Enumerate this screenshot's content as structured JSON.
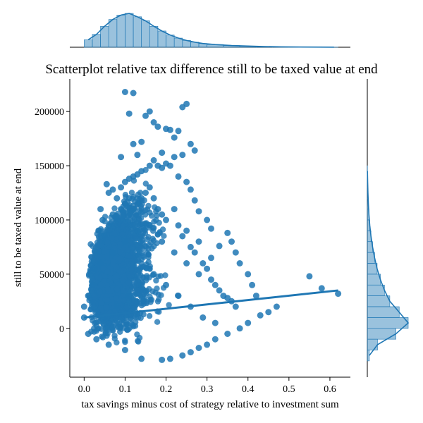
{
  "chart_data": {
    "type": "scatter",
    "title": "Scatterplot relative tax difference still to be taxed value at end",
    "xlabel": "tax savings minus cost of strategy relative to investment sum",
    "ylabel": "still to be taxed value at end",
    "xlim": [
      -0.035,
      0.65
    ],
    "ylim": [
      -45000,
      230000
    ],
    "x_ticks": [
      0.0,
      0.1,
      0.2,
      0.3,
      0.4,
      0.5,
      0.6
    ],
    "x_tick_labels": [
      "0.0",
      "0.1",
      "0.2",
      "0.3",
      "0.4",
      "0.5",
      "0.6"
    ],
    "y_ticks": [
      0,
      50000,
      100000,
      150000,
      200000
    ],
    "y_tick_labels": [
      "0",
      "50000",
      "100000",
      "150000",
      "200000"
    ],
    "grid": false,
    "color": "#1f77b4",
    "regression_line": {
      "x": [
        0.0,
        0.62
      ],
      "y": [
        10000,
        35000
      ]
    },
    "points": [
      [
        0.1,
        218000
      ],
      [
        0.12,
        217000
      ],
      [
        0.25,
        207000
      ],
      [
        0.24,
        204000
      ],
      [
        0.11,
        198000
      ],
      [
        0.15,
        196000
      ],
      [
        0.16,
        200000
      ],
      [
        0.17,
        190000
      ],
      [
        0.18,
        186000
      ],
      [
        0.2,
        184000
      ],
      [
        0.21,
        183000
      ],
      [
        0.23,
        182000
      ],
      [
        0.22,
        176000
      ],
      [
        0.26,
        170000
      ],
      [
        0.27,
        164000
      ],
      [
        0.12,
        170000
      ],
      [
        0.14,
        172000
      ],
      [
        0.09,
        158000
      ],
      [
        0.13,
        160000
      ],
      [
        0.19,
        162000
      ],
      [
        0.22,
        158000
      ],
      [
        0.24,
        160000
      ],
      [
        0.055,
        133000
      ],
      [
        0.06,
        125000
      ],
      [
        0.07,
        128000
      ],
      [
        0.08,
        120000
      ],
      [
        0.09,
        130000
      ],
      [
        0.1,
        135000
      ],
      [
        0.11,
        138000
      ],
      [
        0.12,
        140000
      ],
      [
        0.13,
        142000
      ],
      [
        0.14,
        145000
      ],
      [
        0.16,
        150000
      ],
      [
        0.17,
        155000
      ],
      [
        0.18,
        150000
      ],
      [
        0.19,
        148000
      ],
      [
        0.2,
        152000
      ],
      [
        0.21,
        150000
      ],
      [
        0.23,
        140000
      ],
      [
        0.25,
        135000
      ],
      [
        0.26,
        128000
      ],
      [
        0.27,
        118000
      ],
      [
        0.28,
        108000
      ],
      [
        0.3,
        100000
      ],
      [
        0.31,
        92000
      ],
      [
        0.33,
        76000
      ],
      [
        0.35,
        88000
      ],
      [
        0.36,
        80000
      ],
      [
        0.37,
        70000
      ],
      [
        0.38,
        60000
      ],
      [
        0.4,
        50000
      ],
      [
        0.41,
        40000
      ],
      [
        0.42,
        30000
      ],
      [
        0.55,
        48000
      ],
      [
        0.58,
        37000
      ],
      [
        0.62,
        32000
      ],
      [
        0.47,
        20000
      ],
      [
        0.45,
        15000
      ],
      [
        0.43,
        12000
      ],
      [
        0.4,
        5000
      ],
      [
        0.38,
        0
      ],
      [
        0.35,
        -5000
      ],
      [
        0.32,
        -10000
      ],
      [
        0.3,
        -15000
      ],
      [
        0.28,
        -18000
      ],
      [
        0.26,
        -22000
      ],
      [
        0.24,
        -25000
      ],
      [
        0.21,
        -28000
      ],
      [
        0.19,
        -29000
      ],
      [
        0.14,
        -28000
      ],
      [
        0.1,
        -20000
      ],
      [
        0.06,
        -15000
      ],
      [
        0.03,
        -10000
      ],
      [
        0.01,
        -5000
      ],
      [
        0.0,
        10000
      ],
      [
        0.0,
        20000
      ],
      [
        0.01,
        30000
      ],
      [
        0.02,
        40000
      ],
      [
        0.025,
        55000
      ],
      [
        0.03,
        70000
      ],
      [
        0.035,
        90000
      ],
      [
        0.04,
        110000
      ],
      [
        0.045,
        100000
      ],
      [
        0.05,
        85000
      ],
      [
        0.06,
        95000
      ],
      [
        0.07,
        105000
      ],
      [
        0.08,
        100000
      ],
      [
        0.09,
        110000
      ],
      [
        0.1,
        115000
      ],
      [
        0.11,
        120000
      ],
      [
        0.12,
        110000
      ],
      [
        0.13,
        115000
      ],
      [
        0.14,
        120000
      ],
      [
        0.15,
        125000
      ],
      [
        0.16,
        130000
      ],
      [
        0.17,
        120000
      ],
      [
        0.18,
        110000
      ],
      [
        0.19,
        105000
      ],
      [
        0.2,
        100000
      ],
      [
        0.22,
        110000
      ],
      [
        0.23,
        95000
      ],
      [
        0.24,
        85000
      ],
      [
        0.25,
        90000
      ],
      [
        0.26,
        75000
      ],
      [
        0.27,
        70000
      ],
      [
        0.28,
        80000
      ],
      [
        0.29,
        60000
      ],
      [
        0.3,
        55000
      ],
      [
        0.31,
        45000
      ],
      [
        0.32,
        40000
      ],
      [
        0.33,
        35000
      ],
      [
        0.34,
        30000
      ],
      [
        0.35,
        28000
      ],
      [
        0.36,
        25000
      ],
      [
        0.37,
        20000
      ],
      [
        0.05,
        10000
      ],
      [
        0.08,
        20000
      ],
      [
        0.11,
        30000
      ],
      [
        0.14,
        40000
      ],
      [
        0.17,
        50000
      ],
      [
        0.2,
        40000
      ],
      [
        0.23,
        30000
      ],
      [
        0.26,
        20000
      ],
      [
        0.29,
        10000
      ],
      [
        0.32,
        5000
      ],
      [
        0.04,
        60000
      ],
      [
        0.07,
        70000
      ],
      [
        0.1,
        80000
      ],
      [
        0.13,
        90000
      ],
      [
        0.16,
        95000
      ],
      [
        0.19,
        80000
      ],
      [
        0.22,
        70000
      ],
      [
        0.25,
        60000
      ],
      [
        0.28,
        50000
      ],
      [
        0.31,
        65000
      ]
    ],
    "top_marginal": {
      "bins": [
        0.0,
        0.02,
        0.04,
        0.06,
        0.08,
        0.1,
        0.12,
        0.14,
        0.16,
        0.18,
        0.2,
        0.22,
        0.24,
        0.26,
        0.28,
        0.3,
        0.34,
        0.38,
        0.42,
        0.46,
        0.5,
        0.55,
        0.6
      ],
      "heights": [
        0.22,
        0.38,
        0.62,
        0.82,
        0.95,
        1.0,
        0.9,
        0.78,
        0.62,
        0.48,
        0.36,
        0.27,
        0.2,
        0.15,
        0.11,
        0.08,
        0.05,
        0.035,
        0.02,
        0.012,
        0.007,
        0.004,
        0.002
      ]
    },
    "right_marginal": {
      "bins": [
        -30000,
        -20000,
        -10000,
        0,
        10000,
        20000,
        30000,
        40000,
        50000,
        60000,
        70000,
        80000,
        90000,
        100000,
        110000,
        120000,
        130000,
        140000
      ],
      "heights": [
        0.05,
        0.25,
        0.7,
        1.0,
        0.78,
        0.55,
        0.42,
        0.32,
        0.24,
        0.18,
        0.13,
        0.09,
        0.06,
        0.04,
        0.025,
        0.015,
        0.008,
        0.004
      ]
    }
  }
}
